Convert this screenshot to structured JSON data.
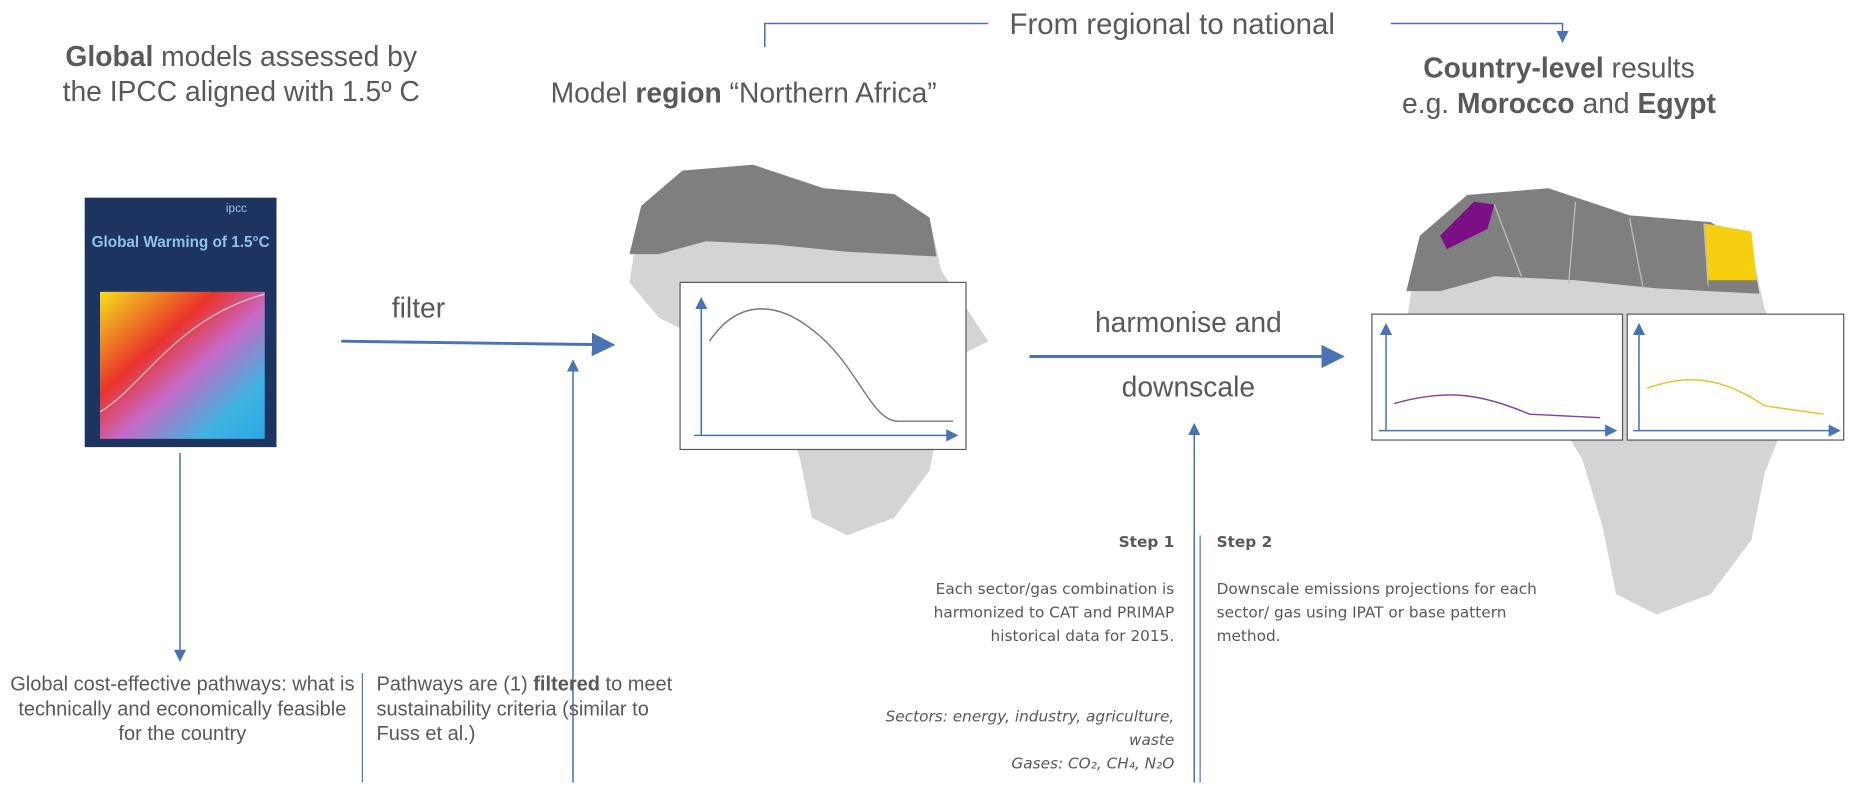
{
  "header": {
    "title": "From regional to national"
  },
  "global": {
    "heading_bold": "Global",
    "heading_rest": " models assessed by the IPCC aligned with 1.5º C",
    "cover_org": "ipcc",
    "cover_title": "Global Warming of 1.5°C",
    "note": "Global cost-effective pathways: what is technically and economically feasible for the country"
  },
  "filter": {
    "label": "filter",
    "note_start": "Pathways are (1) ",
    "note_bold": "filtered",
    "note_end": " to meet sustainability criteria (similar to Fuss et al.)"
  },
  "region": {
    "heading_start": "Model ",
    "heading_bold": "region",
    "heading_end": " “Northern Africa”"
  },
  "downscale": {
    "label_line1": "harmonise and",
    "label_line2": "downscale",
    "step1": {
      "title": "Step 1",
      "text": "Each sector/gas combination is harmonized to CAT and PRIMAP historical data for 2015.",
      "sectors": "Sectors: energy, industry, agriculture, waste",
      "gases": "Gases: CO₂, CH₄, N₂O"
    },
    "step2": {
      "title": "Step 2",
      "text": "Downscale emissions projections for each sector/ gas using IPAT or base pattern method."
    }
  },
  "country": {
    "heading_bold": "Country-level",
    "heading_rest": " results",
    "line2_start": "e.g. ",
    "country1": "Morocco",
    "line2_mid": " and ",
    "country2": "Egypt"
  }
}
